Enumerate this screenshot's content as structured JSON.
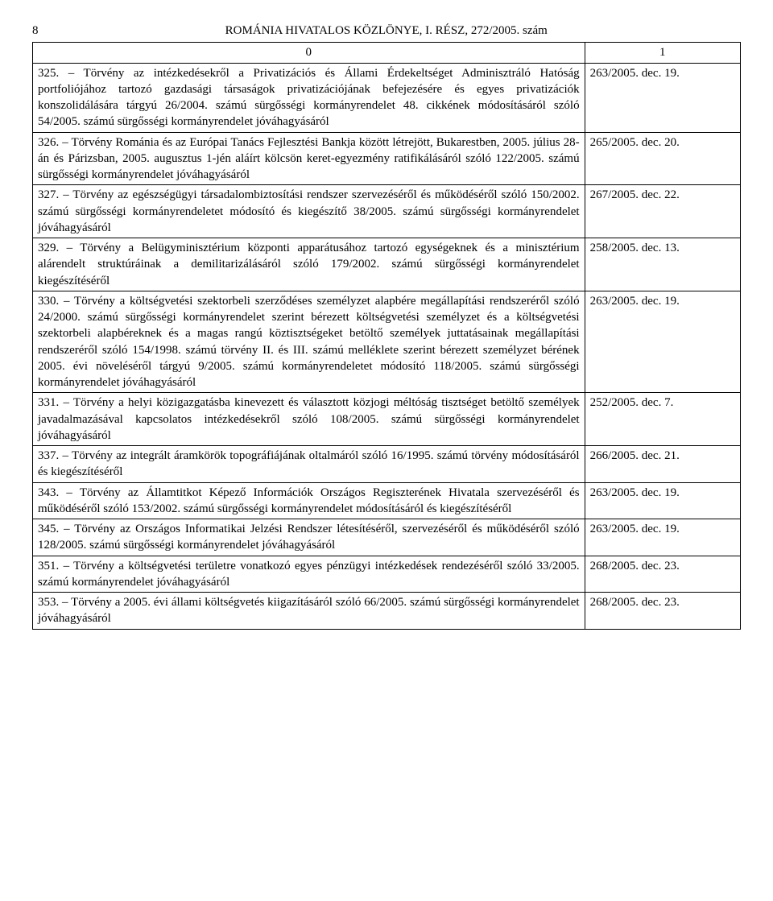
{
  "header": {
    "page_number": "8",
    "title": "ROMÁNIA HIVATALOS KÖZLÖNYE, I. RÉSZ, 272/2005. szám"
  },
  "table": {
    "col0_header": "0",
    "col1_header": "1",
    "rows": [
      {
        "desc": "325. – Törvény az intézkedésekről a Privatizációs és Állami Érdekeltséget Adminisztráló Hatóság portfoliójához tartozó gazdasági társaságok privatizációjának befejezésére és egyes privatizációk konszolidálására tárgyú 26/2004. számú sürgősségi kormányrendelet 48. cikkének módosításáról szóló 54/2005. számú sürgősségi kormányrendelet jóváhagyásáról",
        "ref": "263/2005. dec. 19."
      },
      {
        "desc": "326. – Törvény Románia és az Európai Tanács Fejlesztési Bankja között létrejött, Bukarestben, 2005. július 28-án és Párizsban, 2005. augusztus 1-jén aláírt kölcsön keret-egyezmény ratifikálásáról szóló 122/2005. számú sürgősségi kormányrendelet jóváhagyásáról",
        "ref": "265/2005. dec. 20."
      },
      {
        "desc": "327. – Törvény az egészségügyi társadalombiztosítási rendszer szervezéséről és működéséről szóló 150/2002. számú sürgősségi kormányrendeletet módosító és kiegészítő 38/2005. számú sürgősségi kormányrendelet jóváhagyásáról",
        "ref": "267/2005. dec. 22."
      },
      {
        "desc": "329. – Törvény a Belügyminisztérium központi apparátusához tartozó egységeknek és a minisztérium alárendelt struktúráinak a demilitarizálásáról szóló 179/2002. számú sürgősségi kormányrendelet kiegészítéséről",
        "ref": "258/2005. dec. 13."
      },
      {
        "desc": "330. – Törvény a költségvetési szektorbeli szerződéses személyzet alapbére megállapítási rendszeréről szóló 24/2000. számú sürgősségi kormányrendelet szerint bérezett költségvetési személyzet és a költségvetési szektorbeli alapbéreknek és a magas rangú köztisztségeket betöltő személyek juttatásainak megállapítási rendszeréről szóló 154/1998. számú törvény II. és III. számú melléklete szerint bérezett személyzet bérének 2005. évi növeléséről tárgyú 9/2005. számú kormányrendeletet módosító 118/2005. számú sürgősségi kormányrendelet jóváhagyásáról",
        "ref": "263/2005. dec. 19."
      },
      {
        "desc": "331. – Törvény a helyi közigazgatásba kinevezett és választott közjogi méltóság tisztséget betöltő személyek javadalmazásával kapcsolatos intézkedésekről szóló 108/2005. számú sürgősségi kormányrendelet jóváhagyásáról",
        "ref": "252/2005. dec. 7."
      },
      {
        "desc": "337. – Törvény az integrált áramkörök topográfiájának oltalmáról szóló 16/1995. számú törvény módosításáról és kiegészítéséről",
        "ref": "266/2005. dec. 21."
      },
      {
        "desc": "343. – Törvény az Államtitkot Képező Információk Országos Regiszterének Hivatala szervezéséről és működéséről szóló 153/2002. számú sürgősségi kormányrendelet módosításáról és kiegészítéséről",
        "ref": "263/2005. dec. 19."
      },
      {
        "desc": "345. – Törvény az Országos Informatikai Jelzési Rendszer létesítéséről, szervezéséről és működéséről szóló 128/2005. számú sürgősségi kormányrendelet jóváhagyásáról",
        "ref": "263/2005. dec. 19."
      },
      {
        "desc": "351. – Törvény a költségvetési területre vonatkozó egyes pénzügyi intézkedések rendezéséről szóló 33/2005. számú kormányrendelet jóváhagyásáról",
        "ref": "268/2005. dec. 23."
      },
      {
        "desc": "353. – Törvény a 2005. évi állami költségvetés kiigazításáról szóló 66/2005. számú sürgősségi kormányrendelet jóváhagyásáról",
        "ref": "268/2005. dec. 23."
      }
    ]
  }
}
